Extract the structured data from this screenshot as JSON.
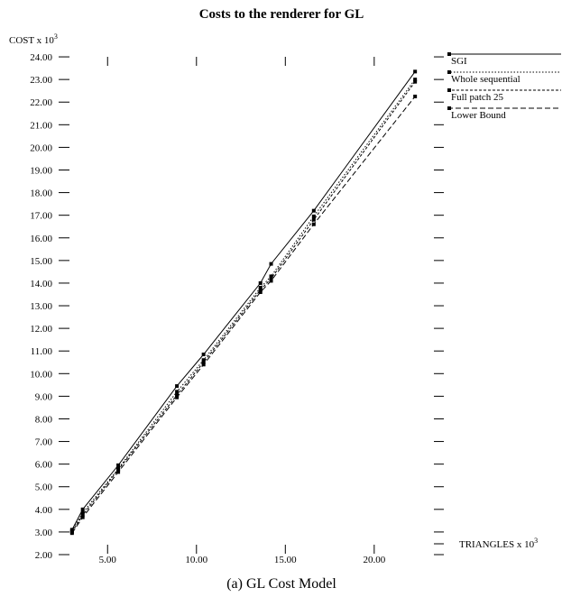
{
  "chart_data": {
    "type": "line",
    "title": "Costs to the renderer for GL",
    "caption": "(a) GL Cost Model",
    "ylabel": {
      "base": "COST x 10",
      "exp": "3"
    },
    "xlabel": {
      "base": "TRIANGLES x 10",
      "exp": "3"
    },
    "xlim": [
      2.5,
      22.8
    ],
    "ylim": [
      2.0,
      24.6
    ],
    "x_ticks": [
      5.0,
      10.0,
      15.0,
      20.0
    ],
    "x_tick_labels": [
      "5.00",
      "10.00",
      "15.00",
      "20.00"
    ],
    "y_ticks": [
      2,
      3,
      4,
      5,
      6,
      7,
      8,
      9,
      10,
      11,
      12,
      13,
      14,
      15,
      16,
      17,
      18,
      19,
      20,
      21,
      22,
      23,
      24
    ],
    "y_tick_labels": [
      "2.00",
      "3.00",
      "4.00",
      "5.00",
      "6.00",
      "7.00",
      "8.00",
      "9.00",
      "10.00",
      "11.00",
      "12.00",
      "13.00",
      "14.00",
      "15.00",
      "16.00",
      "17.00",
      "18.00",
      "19.00",
      "20.00",
      "21.00",
      "22.00",
      "23.00",
      "24.00"
    ],
    "grid": false,
    "legend_position": "right",
    "series": [
      {
        "name": "SGI",
        "dash": "solid",
        "points": [
          [
            3.0,
            3.1
          ],
          [
            3.6,
            4.0
          ],
          [
            5.6,
            5.95
          ],
          [
            8.9,
            9.45
          ],
          [
            10.4,
            10.85
          ],
          [
            13.6,
            14.0
          ],
          [
            14.2,
            14.85
          ],
          [
            16.6,
            17.2
          ],
          [
            22.3,
            23.35
          ]
        ]
      },
      {
        "name": "Whole sequential",
        "dash": "dotted",
        "points": [
          [
            3.0,
            3.05
          ],
          [
            3.6,
            3.85
          ],
          [
            5.6,
            5.8
          ],
          [
            8.9,
            9.2
          ],
          [
            10.4,
            10.6
          ],
          [
            13.6,
            13.8
          ],
          [
            14.2,
            14.3
          ],
          [
            16.6,
            16.95
          ],
          [
            22.3,
            23.0
          ]
        ]
      },
      {
        "name": "Full patch 25",
        "dash": "short-dash",
        "points": [
          [
            3.0,
            3.0
          ],
          [
            3.6,
            3.75
          ],
          [
            5.6,
            5.75
          ],
          [
            8.9,
            9.05
          ],
          [
            10.4,
            10.5
          ],
          [
            13.6,
            13.7
          ],
          [
            14.2,
            14.2
          ],
          [
            16.6,
            16.8
          ],
          [
            22.3,
            22.9
          ]
        ]
      },
      {
        "name": "Lower Bound",
        "dash": "long-dash",
        "points": [
          [
            3.0,
            2.95
          ],
          [
            3.6,
            3.65
          ],
          [
            5.6,
            5.65
          ],
          [
            8.9,
            8.95
          ],
          [
            10.4,
            10.4
          ],
          [
            13.6,
            13.6
          ],
          [
            14.2,
            14.1
          ],
          [
            16.6,
            16.6
          ],
          [
            22.3,
            22.25
          ]
        ]
      }
    ]
  }
}
